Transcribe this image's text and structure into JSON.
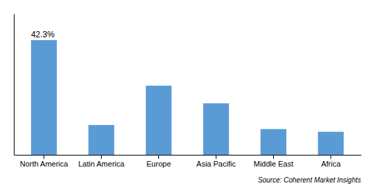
{
  "chart_data": {
    "type": "bar",
    "categories": [
      "North America",
      "Latin America",
      "Europe",
      "Asia Pacific",
      "Middle East",
      "Africa"
    ],
    "values": [
      42.3,
      11.0,
      25.5,
      19.0,
      9.5,
      8.5
    ],
    "color": "#5B9BD5",
    "ylim": [
      0,
      52
    ],
    "yticks": [],
    "grid": false,
    "tick_labels": "x",
    "annotations": [
      {
        "text": "42.3%",
        "category": "North America",
        "value": 42.3
      }
    ],
    "source": "Source: Coherent Market Insights"
  }
}
